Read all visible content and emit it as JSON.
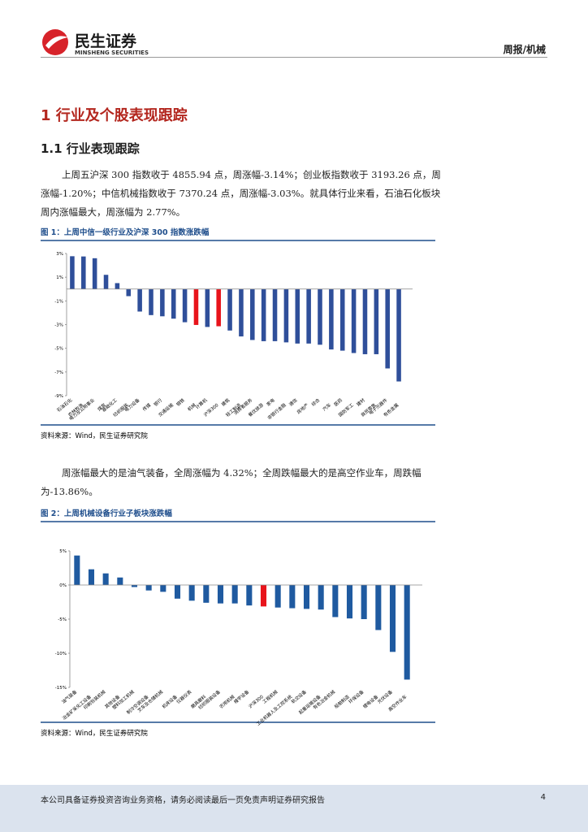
{
  "header": {
    "brand": "民生证券",
    "brand_en": "MINSHENG SECURITIES",
    "section": "周报/机械"
  },
  "heading1": "1 行业及个股表现跟踪",
  "heading2": "1.1 行业表现跟踪",
  "paragraphs": [
    "上周五沪深 300 指数收于 4855.94 点，周涨幅-3.14%；创业板指数收于 3193.26 点，周涨幅-1.20%；中信机械指数收于 7370.24 点，周涨幅-3.03%。就具体行业来看，石油石化板块周内涨幅最大，周涨幅为 2.77%。",
    "周涨幅最大的是油气装备，全周涨幅为 4.32%；全周跌幅最大的是高空作业车，周跌幅为-13.86%。"
  ],
  "chart_data": [
    {
      "type": "bar",
      "title": "图 1：上周中信一级行业及沪深 300 指数涨跌幅",
      "source": "资料来源：Wind，民生证券研究院",
      "categories": [
        "石油石化",
        "农林牧渔",
        "电力及公用事业",
        "煤炭",
        "基础化工",
        "纺织服装",
        "电力设备",
        "传媒",
        "银行",
        "交通运输",
        "钢铁",
        "机械",
        "计算机",
        "沪深300",
        "建筑",
        "轻工制造",
        "消费者服务",
        "餐饮旅游",
        "家电",
        "非银行金融",
        "通信",
        "房地产",
        "综合",
        "汽车",
        "医药",
        "国防军工",
        "建材",
        "商贸零售",
        "电子元器件",
        "有色金属"
      ],
      "values": [
        2.77,
        2.75,
        2.6,
        1.2,
        0.5,
        -0.6,
        -1.9,
        -2.2,
        -2.3,
        -2.5,
        -2.8,
        -3.03,
        -3.2,
        -3.14,
        -3.5,
        -4.0,
        -4.3,
        -4.4,
        -4.4,
        -4.5,
        -4.6,
        -4.6,
        -4.7,
        -5.1,
        -5.2,
        -5.4,
        -5.5,
        -5.5,
        -6.7,
        -7.8
      ],
      "colors": [
        "#2f4f9a",
        "#2f4f9a",
        "#2f4f9a",
        "#2f4f9a",
        "#2f4f9a",
        "#2f4f9a",
        "#2f4f9a",
        "#2f4f9a",
        "#2f4f9a",
        "#2f4f9a",
        "#2f4f9a",
        "#e8141b",
        "#2f4f9a",
        "#e8141b",
        "#2f4f9a",
        "#2f4f9a",
        "#2f4f9a",
        "#2f4f9a",
        "#2f4f9a",
        "#2f4f9a",
        "#2f4f9a",
        "#2f4f9a",
        "#2f4f9a",
        "#2f4f9a",
        "#2f4f9a",
        "#2f4f9a",
        "#2f4f9a",
        "#2f4f9a",
        "#2f4f9a",
        "#2f4f9a"
      ],
      "ylim": [
        -9,
        3
      ],
      "yticks": [
        {
          "value": 3,
          "label": "3%"
        },
        {
          "value": 1,
          "label": "1%"
        },
        {
          "value": -1,
          "label": "-1%"
        },
        {
          "value": -3,
          "label": "-3%"
        },
        {
          "value": -5,
          "label": "-5%"
        },
        {
          "value": -7,
          "label": "-7%"
        },
        {
          "value": -9,
          "label": "-9%"
        }
      ]
    },
    {
      "type": "bar",
      "title": "图 2：上周机械设备行业子板块涨跌幅",
      "source": "资料来源：Wind，民生证券研究院",
      "categories": [
        "油气装备",
        "冶金矿采化工设备",
        "印刷包装机械",
        "其他设备",
        "塑料加工机械",
        "制冷空调设备",
        "叉车及仓储机械",
        "机床设备",
        "仪器仪表",
        "磨具磨料",
        "纺织服装设备",
        "农用机械",
        "楼宇设备",
        "沪深300",
        "工程机械",
        "工业机器人及工控系统",
        "轨交设备",
        "起重运输设备",
        "有色冶金机械",
        "船舶制造",
        "环保设备",
        "锂电设备",
        "光伏设备",
        "高空作业车"
      ],
      "values": [
        4.32,
        2.3,
        1.7,
        1.1,
        -0.3,
        -0.8,
        -1.0,
        -2.0,
        -2.3,
        -2.6,
        -2.7,
        -2.7,
        -3.0,
        -3.14,
        -3.3,
        -3.4,
        -3.5,
        -3.6,
        -4.7,
        -4.9,
        -5.0,
        -6.6,
        -9.8,
        -13.86
      ],
      "colors": [
        "#1f5aa0",
        "#1f5aa0",
        "#1f5aa0",
        "#1f5aa0",
        "#1f5aa0",
        "#1f5aa0",
        "#1f5aa0",
        "#1f5aa0",
        "#1f5aa0",
        "#1f5aa0",
        "#1f5aa0",
        "#1f5aa0",
        "#1f5aa0",
        "#e8141b",
        "#1f5aa0",
        "#1f5aa0",
        "#1f5aa0",
        "#1f5aa0",
        "#1f5aa0",
        "#1f5aa0",
        "#1f5aa0",
        "#1f5aa0",
        "#1f5aa0",
        "#1f5aa0"
      ],
      "ylim": [
        -15,
        5
      ],
      "yticks": [
        {
          "value": 5,
          "label": "5%"
        },
        {
          "value": 0,
          "label": "0%"
        },
        {
          "value": -5,
          "label": "-5%"
        },
        {
          "value": -10,
          "label": "-10%"
        },
        {
          "value": -15,
          "label": "-15%"
        }
      ]
    }
  ],
  "footer": {
    "disclaimer": "本公司具备证券投资咨询业务资格，请务必阅读最后一页免责声明证券研究报告",
    "page": "4"
  }
}
